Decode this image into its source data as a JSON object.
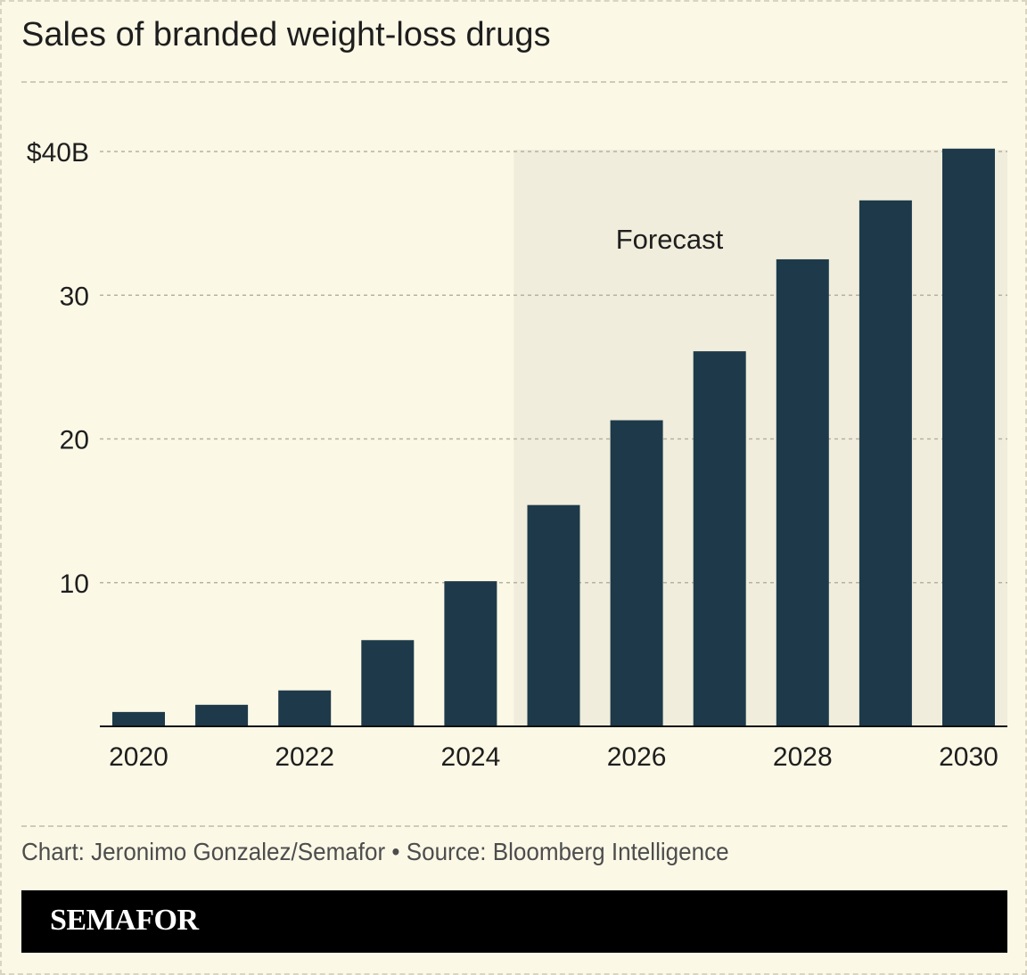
{
  "title": "Sales of branded weight-loss drugs",
  "credit": "Chart: Jeronimo Gonzalez/Semafor • Source: Bloomberg Intelligence",
  "brand": "SEMAFOR",
  "colors": {
    "background": "#fbf8e6",
    "bar": "#1e3a4a",
    "forecast_shade": "#f0eddc"
  },
  "chart_data": {
    "type": "bar",
    "title": "Sales of branded weight-loss drugs",
    "xlabel": "",
    "ylabel": "",
    "categories": [
      "2020",
      "2021",
      "2022",
      "2023",
      "2024",
      "2025",
      "2026",
      "2027",
      "2028",
      "2029",
      "2030"
    ],
    "values": [
      1.0,
      1.5,
      2.5,
      6.0,
      10.1,
      15.4,
      21.3,
      26.1,
      32.5,
      36.6,
      40.2
    ],
    "ylim": [
      0,
      40
    ],
    "y_ticks": [
      {
        "value": 10,
        "label": "10"
      },
      {
        "value": 20,
        "label": "20"
      },
      {
        "value": 30,
        "label": "30"
      },
      {
        "value": 40,
        "label": "$40B"
      }
    ],
    "x_tick_labels": [
      "2020",
      "2022",
      "2024",
      "2026",
      "2028",
      "2030"
    ],
    "forecast": {
      "label": "Forecast",
      "start": "2025",
      "end": "2030"
    },
    "grid": true
  }
}
